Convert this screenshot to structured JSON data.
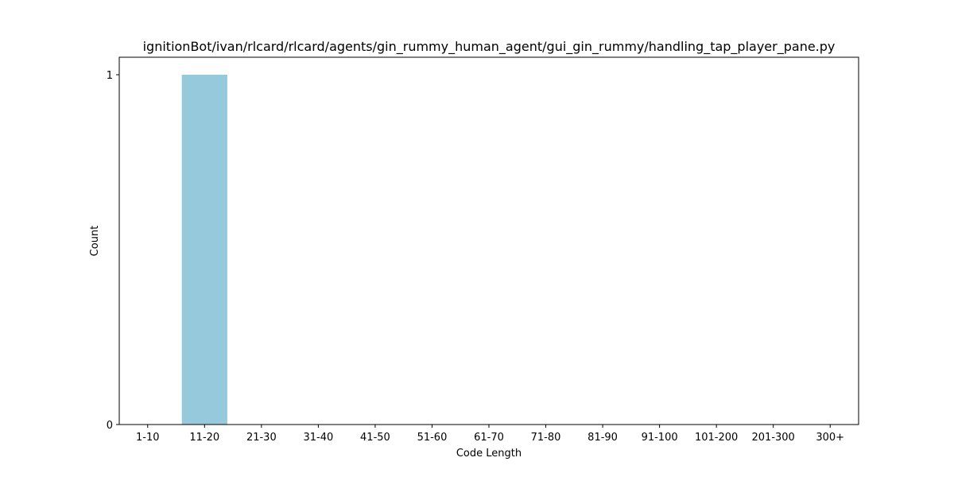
{
  "chart_data": {
    "type": "bar",
    "title": "ignitionBot/ivan/rlcard/rlcard/agents/gin_rummy_human_agent/gui_gin_rummy/handling_tap_player_pane.py",
    "xlabel": "Code Length",
    "ylabel": "Count",
    "categories": [
      "1-10",
      "11-20",
      "21-30",
      "31-40",
      "41-50",
      "51-60",
      "61-70",
      "71-80",
      "81-90",
      "91-100",
      "101-200",
      "201-300",
      "300+"
    ],
    "values": [
      0,
      1,
      0,
      0,
      0,
      0,
      0,
      0,
      0,
      0,
      0,
      0,
      0
    ],
    "ylim": [
      0,
      1.05
    ],
    "yticks": [
      0,
      1
    ],
    "bar_color": "#96c9dc",
    "grid": false,
    "legend": false
  }
}
